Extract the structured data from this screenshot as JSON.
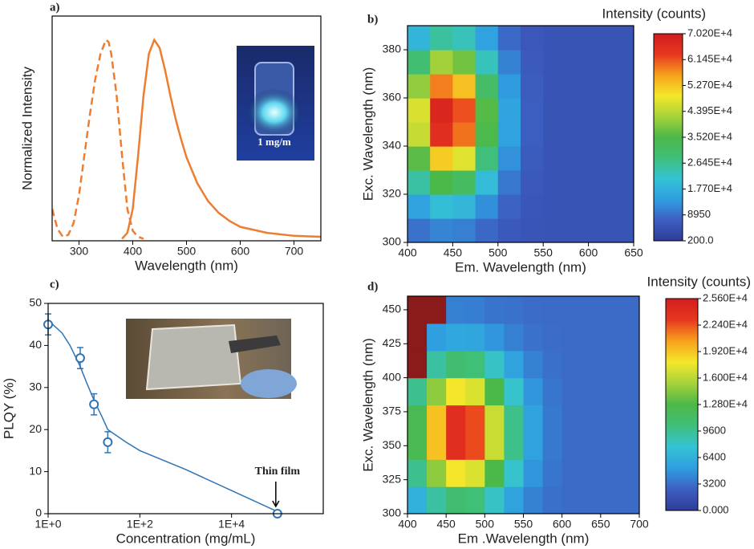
{
  "chart_data": [
    {
      "type": "line",
      "panel_label": "a)",
      "x_label": "Wavelength (nm)",
      "y_label": "Normalized Intensity",
      "xlim": [
        250,
        750
      ],
      "xticks": [
        300,
        400,
        500,
        600,
        700
      ],
      "ylim": [
        -0.01,
        1.12
      ],
      "inset_text": "1 mg/m",
      "series": [
        {
          "color": "#ed7d31",
          "dash": true,
          "x": [
            250,
            260,
            270,
            280,
            290,
            300,
            310,
            320,
            330,
            340,
            350,
            355,
            360,
            370,
            380,
            390,
            400,
            410,
            420
          ],
          "values": [
            0.15,
            0.05,
            0.01,
            0.02,
            0.08,
            0.22,
            0.42,
            0.62,
            0.8,
            0.93,
            1.0,
            0.99,
            0.93,
            0.72,
            0.42,
            0.15,
            0.04,
            0.01,
            0.0
          ]
        },
        {
          "color": "#ed7d31",
          "dash": false,
          "x": [
            380,
            390,
            400,
            410,
            420,
            430,
            440,
            450,
            460,
            470,
            480,
            490,
            500,
            520,
            540,
            560,
            580,
            600,
            650,
            700,
            750
          ],
          "values": [
            0.0,
            0.03,
            0.15,
            0.42,
            0.72,
            0.93,
            1.0,
            0.96,
            0.85,
            0.72,
            0.6,
            0.5,
            0.41,
            0.28,
            0.19,
            0.13,
            0.09,
            0.06,
            0.03,
            0.015,
            0.01
          ]
        }
      ]
    },
    {
      "type": "heatmap",
      "panel_label": "b)",
      "x_label": "Em. Wavelength (nm)",
      "y_label": "Exc. Wavelength (nm)",
      "colorbar_title": "Intensity (counts)",
      "xlim": [
        400,
        650
      ],
      "xticks": [
        400,
        450,
        500,
        550,
        600,
        650
      ],
      "ylim": [
        300,
        390
      ],
      "yticks": [
        300,
        320,
        340,
        360,
        380
      ],
      "xbins": [
        400,
        425,
        450,
        475,
        500,
        525,
        550,
        575,
        600,
        625,
        650
      ],
      "ybins": [
        300,
        310,
        320,
        330,
        340,
        350,
        360,
        370,
        380,
        390
      ],
      "z": [
        [
          9200,
          11400,
          10700,
          8100,
          6000,
          5200,
          5000,
          5000,
          5000,
          5000
        ],
        [
          15100,
          20300,
          18700,
          12500,
          7500,
          5500,
          5000,
          5000,
          5000,
          5000
        ],
        [
          24900,
          34900,
          31900,
          19700,
          9900,
          5900,
          5000,
          5000,
          5000,
          5000
        ],
        [
          36300,
          52100,
          47300,
          28100,
          12700,
          6400,
          5000,
          5000,
          5000,
          5000
        ],
        [
          45100,
          65500,
          59300,
          34600,
          14900,
          6900,
          5000,
          5000,
          5000,
          5000
        ],
        [
          46800,
          68100,
          61600,
          35900,
          15300,
          6900,
          5000,
          5000,
          5000,
          5000
        ],
        [
          40500,
          58500,
          53100,
          31200,
          13700,
          6600,
          5000,
          5000,
          5000,
          5000
        ],
        [
          29500,
          42000,
          38200,
          23100,
          11000,
          6100,
          5000,
          5000,
          5000,
          5000
        ],
        [
          18500,
          25400,
          23300,
          15000,
          8300,
          5600,
          5000,
          5000,
          5000,
          5000
        ]
      ],
      "zlim": [
        200,
        70200
      ],
      "zticks": [
        {
          "value": 200,
          "label": "200.0"
        },
        8950,
        {
          "value": 17700,
          "label": "1.770E+4"
        },
        {
          "value": 26450,
          "label": "2.645E+4"
        },
        {
          "value": 35200,
          "label": "3.520E+4"
        },
        {
          "value": 43950,
          "label": "4.395E+4"
        },
        {
          "value": 52700,
          "label": "5.270E+4"
        },
        {
          "value": 61450,
          "label": "6.145E+4"
        },
        {
          "value": 70200,
          "label": "7.020E+4"
        }
      ],
      "colormap": [
        "#2e3c99",
        "#3d5fc2",
        "#2f9ee0",
        "#35c3d4",
        "#3fbf7a",
        "#4cb848",
        "#a6d23a",
        "#f4e82a",
        "#f7a11c",
        "#e8371f",
        "#d21e1e"
      ]
    },
    {
      "type": "scatter",
      "panel_label": "c)",
      "x_label": "Concentration (mg/mL)",
      "y_label": "PLQY (%)",
      "xscale": "log",
      "xlim": [
        1,
        1000000
      ],
      "xticks": [
        {
          "value": 1,
          "label": "1E+0"
        },
        {
          "value": 100,
          "label": "1E+2"
        },
        {
          "value": 10000,
          "label": "1E+4"
        }
      ],
      "ylim": [
        0,
        50
      ],
      "yticks": [
        0,
        10,
        20,
        30,
        40,
        50
      ],
      "annotation": "Thin film",
      "series": [
        {
          "color": "#2e75b6",
          "style": "markers",
          "x": [
            1,
            5,
            10,
            20,
            100000
          ],
          "values": [
            45,
            37,
            26,
            17,
            0
          ],
          "errors": [
            2.5,
            2.5,
            2.5,
            2.5,
            null
          ]
        },
        {
          "color": "#2e75b6",
          "style": "line",
          "x": [
            1,
            2,
            3,
            5,
            7,
            10,
            15,
            20,
            50,
            100,
            1000,
            10000,
            100000
          ],
          "values": [
            46,
            43,
            40,
            35,
            31,
            27,
            23,
            20,
            17,
            15,
            10.5,
            5.5,
            0.5
          ]
        }
      ]
    },
    {
      "type": "heatmap",
      "panel_label": "d)",
      "x_label": "Em .Wavelength (nm)",
      "y_label": "Exc. Wavelength (nm)",
      "colorbar_title": "Intensity (counts)",
      "xlim": [
        400,
        700
      ],
      "xticks": [
        400,
        450,
        500,
        550,
        600,
        650,
        700
      ],
      "ylim": [
        300,
        460
      ],
      "yticks": [
        300,
        325,
        350,
        375,
        400,
        425,
        450
      ],
      "xbins": [
        400,
        425,
        450,
        475,
        500,
        525,
        550,
        575,
        600,
        625,
        650,
        675,
        700
      ],
      "ybins": [
        300,
        320,
        340,
        360,
        380,
        400,
        420,
        440,
        460
      ],
      "z": [
        [
          6500,
          9100,
          10800,
          10400,
          8100,
          5500,
          4000,
          3200,
          3000,
          3000,
          3000,
          3000
        ],
        [
          9700,
          14700,
          18000,
          17100,
          12700,
          7900,
          4800,
          3500,
          3000,
          3000,
          3000,
          3000
        ],
        [
          12300,
          19300,
          23900,
          22600,
          16500,
          9800,
          5500,
          3600,
          3000,
          3000,
          3000,
          3000
        ],
        [
          12300,
          19300,
          23900,
          22600,
          16500,
          9800,
          5500,
          3600,
          3000,
          3000,
          3000,
          3000
        ],
        [
          9700,
          14700,
          18000,
          17100,
          12700,
          7900,
          4800,
          3500,
          3000,
          3000,
          3000,
          3000
        ],
        [
          30000,
          9100,
          10800,
          10400,
          8100,
          5500,
          4000,
          3200,
          3000,
          3000,
          3000,
          3000
        ],
        [
          30000,
          5200,
          5800,
          5700,
          4800,
          3900,
          3300,
          3100,
          3000,
          3000,
          3000,
          3000
        ],
        [
          30000,
          30000,
          3900,
          3800,
          3400,
          3300,
          3100,
          3000,
          3000,
          3000,
          3000,
          3000
        ]
      ],
      "zlim": [
        0,
        25600
      ],
      "zticks": [
        {
          "value": 0,
          "label": "0.000"
        },
        3200,
        6400,
        9600,
        {
          "value": 12800,
          "label": "1.280E+4"
        },
        {
          "value": 16000,
          "label": "1.600E+4"
        },
        {
          "value": 19200,
          "label": "1.920E+4"
        },
        {
          "value": 22400,
          "label": "2.240E+4"
        },
        {
          "value": 25600,
          "label": "2.560E+4"
        }
      ],
      "colormap": [
        "#2e3c99",
        "#3d5fc2",
        "#2f9ee0",
        "#35c3d4",
        "#3fbf7a",
        "#4cb848",
        "#a6d23a",
        "#f4e82a",
        "#f7a11c",
        "#e8371f",
        "#d21e1e"
      ],
      "over_color": "#8b1a1a"
    }
  ]
}
